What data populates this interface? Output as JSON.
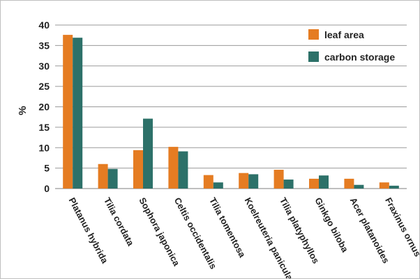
{
  "chart_data": {
    "type": "bar",
    "title": "",
    "xlabel": "",
    "ylabel": "%",
    "ylim": [
      0,
      40
    ],
    "yticks": [
      0,
      5,
      10,
      15,
      20,
      25,
      30,
      35,
      40
    ],
    "grid": true,
    "legend_position": "top-right",
    "categories": [
      "Platanus hybrida",
      "Tilia cordata",
      "Sophora japonica",
      "Celtis occidentalis",
      "Tilia tomentosa",
      "Koelreuteria paniculata",
      "Tilia platyphyllos",
      "Ginkgo biloba",
      "Acer platanoides",
      "Fraxinus ornus"
    ],
    "series": [
      {
        "name": "leaf area",
        "color": "#e57c22",
        "values": [
          37.6,
          6.0,
          9.4,
          10.2,
          3.3,
          3.8,
          4.6,
          2.4,
          2.4,
          1.5
        ]
      },
      {
        "name": "carbon storage",
        "color": "#2d7169",
        "values": [
          36.9,
          4.8,
          17.1,
          9.1,
          1.5,
          3.5,
          2.2,
          3.2,
          0.9,
          0.7
        ]
      }
    ]
  }
}
